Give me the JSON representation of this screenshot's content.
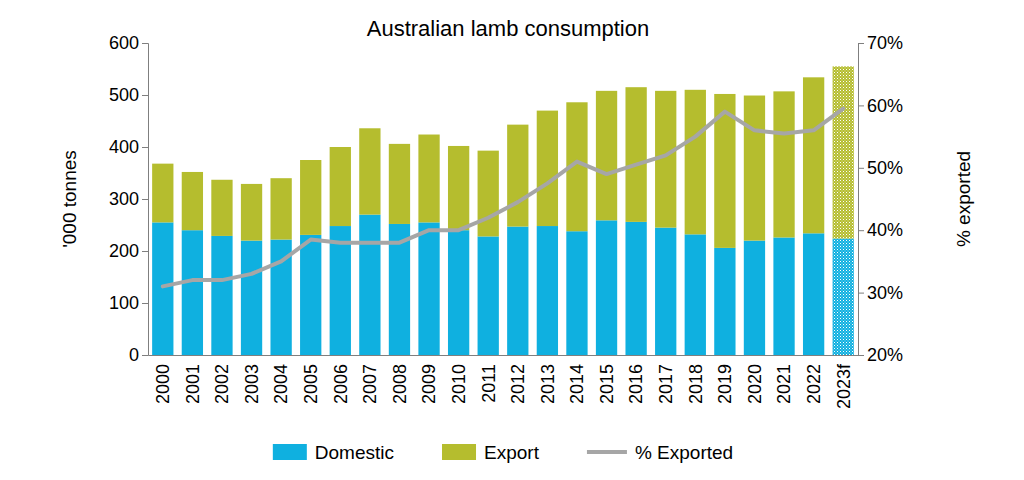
{
  "chart_data": {
    "type": "bar",
    "title": "Australian lamb consumption",
    "y_label": "'000 tonnes",
    "y2_label": "% exported",
    "categories": [
      "2000",
      "2001",
      "2002",
      "2003",
      "2004",
      "2005",
      "2006",
      "2007",
      "2008",
      "2009",
      "2010",
      "2011",
      "2012",
      "2013",
      "2014",
      "2015",
      "2016",
      "2017",
      "2018",
      "2019",
      "2020",
      "2021",
      "2022",
      "2023f"
    ],
    "stacked": true,
    "legend": "bottom",
    "series": [
      {
        "name": "Domestic",
        "type": "bar",
        "color": "#0fb0e0",
        "values": [
          255,
          240,
          229,
          220,
          222,
          231,
          248,
          270,
          252,
          255,
          240,
          228,
          247,
          248,
          238,
          259,
          256,
          245,
          232,
          206,
          220,
          226,
          234,
          224
        ]
      },
      {
        "name": "Export",
        "type": "bar",
        "color": "#b5bd2e",
        "values": [
          113,
          112,
          108,
          109,
          118,
          144,
          152,
          166,
          154,
          169,
          162,
          165,
          196,
          222,
          248,
          249,
          259,
          263,
          278,
          296,
          279,
          281,
          300,
          331
        ]
      },
      {
        "name": "% Exported",
        "type": "line",
        "axis": "y2",
        "color": "#a6a6a6",
        "values": [
          31,
          32,
          32,
          33,
          35,
          38.5,
          38,
          38,
          38,
          40,
          40,
          42,
          44.5,
          47.5,
          51,
          49,
          50.5,
          52,
          55,
          59,
          56,
          55.5,
          56,
          59.5
        ]
      }
    ],
    "ylim": [
      0,
      600
    ],
    "yticks": [
      0,
      100,
      200,
      300,
      400,
      500,
      600
    ],
    "y2lim": [
      20,
      70
    ],
    "y2ticks": [
      {
        "value": 20,
        "label": "20%"
      },
      {
        "value": 30,
        "label": "30%"
      },
      {
        "value": 40,
        "label": "40%"
      },
      {
        "value": 50,
        "label": "50%"
      },
      {
        "value": 60,
        "label": "60%"
      },
      {
        "value": 70,
        "label": "70%"
      }
    ]
  }
}
